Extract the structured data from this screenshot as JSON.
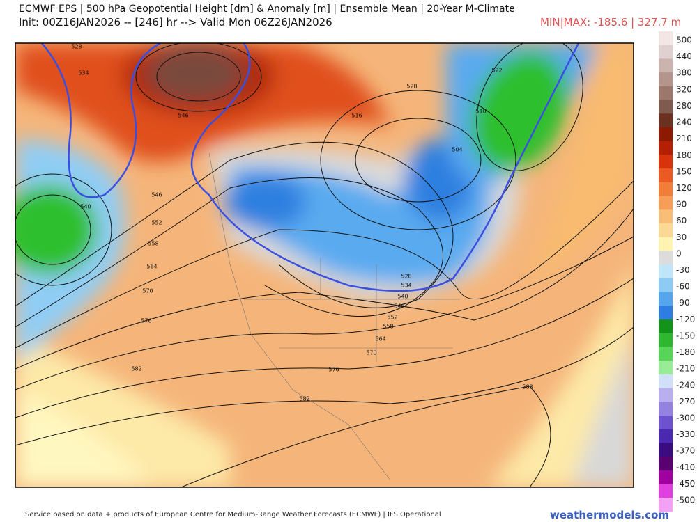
{
  "header": {
    "title": "ECMWF EPS | 500 hPa Geopotential Height [dm] & Anomaly [m] | Ensemble Mean | 20-Year M-Climate",
    "subtitle": "Init: 00Z16JAN2026 -- [246] hr --> Valid Mon 06Z26JAN2026",
    "minmax": "MIN|MAX: -185.6 | 327.7 m"
  },
  "colorbar": {
    "labels": [
      500,
      440,
      380,
      320,
      280,
      240,
      210,
      180,
      150,
      120,
      90,
      60,
      30,
      0,
      -30,
      -60,
      -90,
      -120,
      -150,
      -180,
      -210,
      -240,
      -270,
      -300,
      -330,
      -370,
      -410,
      -450,
      -500
    ]
  },
  "contour_labels": [
    528,
    534,
    546,
    552,
    558,
    564,
    570,
    576,
    582,
    540,
    546,
    528,
    516,
    522,
    510,
    504,
    528,
    534,
    540,
    546,
    552,
    558,
    564,
    570,
    576,
    582,
    588
  ],
  "footer": {
    "credit": "Service based on data + products of European Centre for Medium-Range Weather Forecasts (ECMWF) | IFS Operational",
    "site": "weathermodels.com"
  }
}
